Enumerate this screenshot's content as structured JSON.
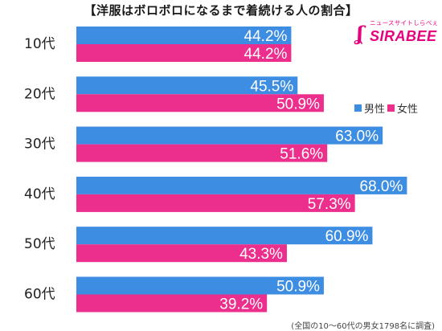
{
  "title": "【洋服はボロボロになるまで着続ける人の割合】",
  "logo": {
    "tagline": "ニュースサイトしらべぇ",
    "word": "SIRABEE"
  },
  "footnote": "(全国の10～60代の男女1798名に調査)",
  "colors": {
    "male": "#3d8de3",
    "female": "#ec2e8c"
  },
  "chart_data": {
    "type": "bar",
    "orientation": "horizontal",
    "categories": [
      "10代",
      "20代",
      "30代",
      "40代",
      "50代",
      "60代"
    ],
    "series": [
      {
        "name": "男性",
        "values": [
          44.2,
          45.5,
          63.0,
          68.0,
          60.9,
          50.9
        ]
      },
      {
        "name": "女性",
        "values": [
          44.2,
          50.9,
          51.6,
          57.3,
          43.3,
          39.2
        ]
      }
    ],
    "value_labels": {
      "男性": [
        "44.2%",
        "45.5%",
        "63.0%",
        "68.0%",
        "60.9%",
        "50.9%"
      ],
      "女性": [
        "44.2%",
        "50.9%",
        "51.6%",
        "57.3%",
        "43.3%",
        "39.2%"
      ]
    },
    "grid": false,
    "legend": "right"
  }
}
